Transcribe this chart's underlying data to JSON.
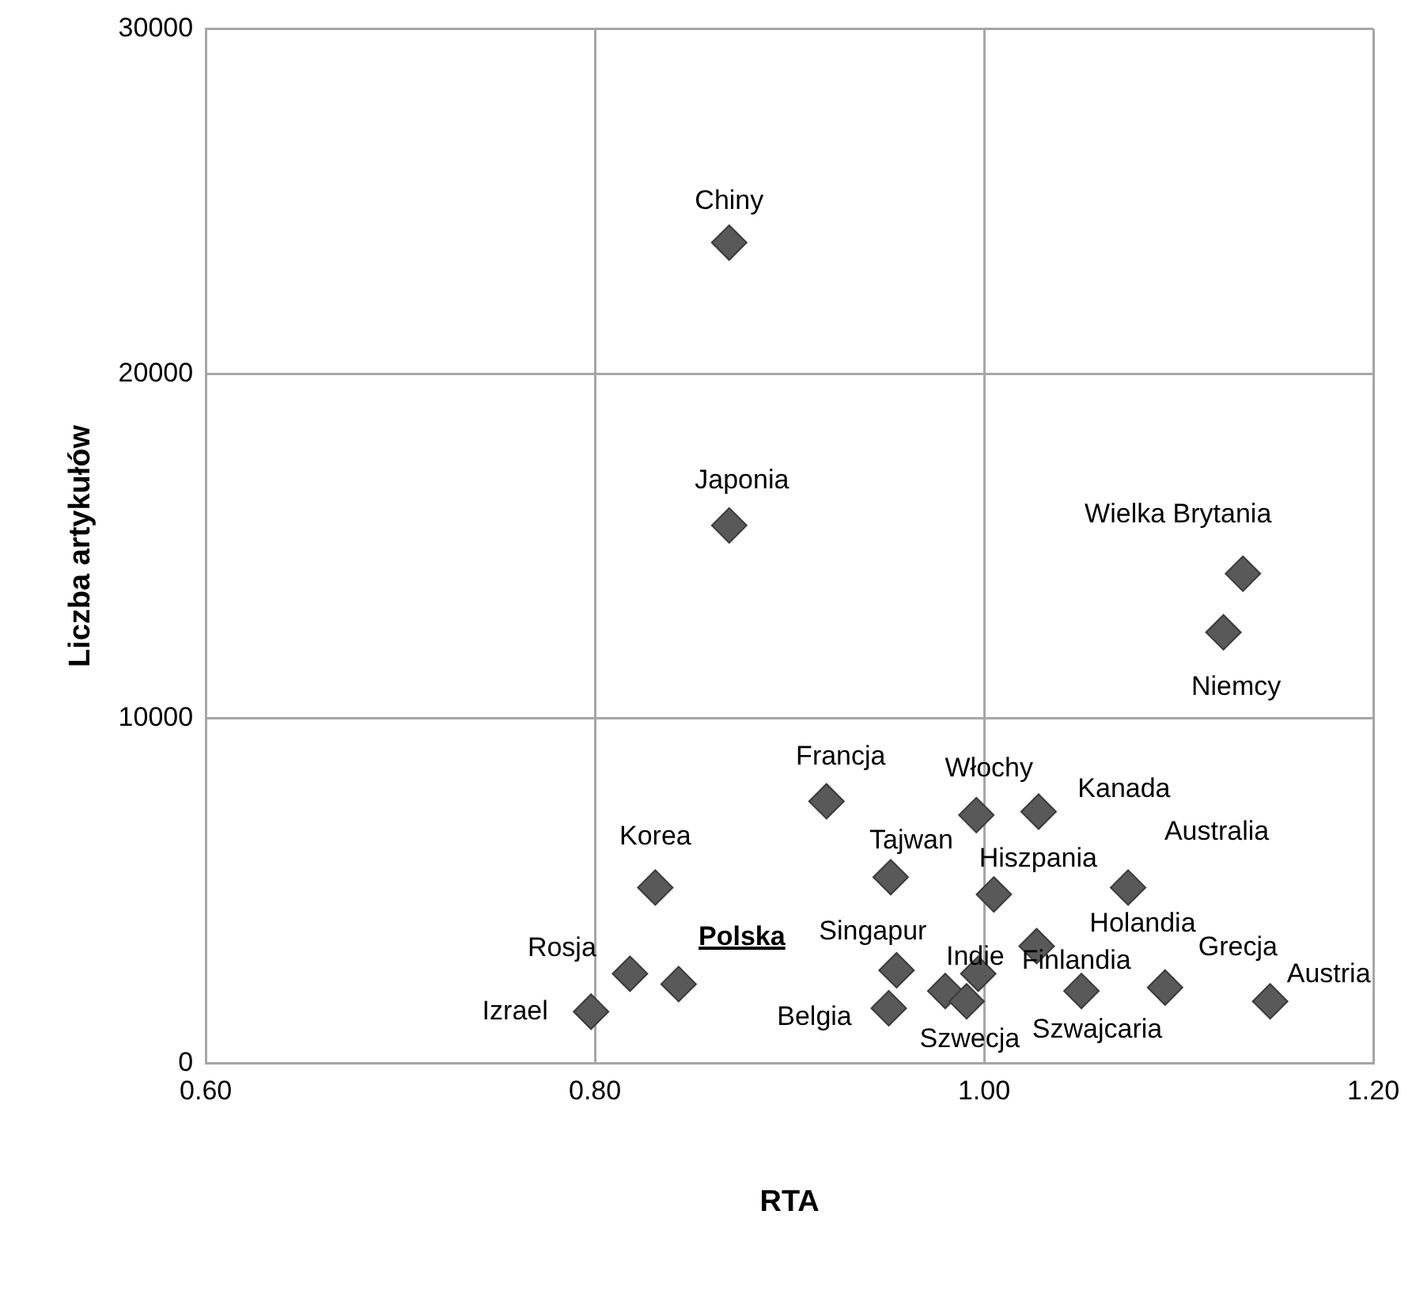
{
  "chart_data": {
    "type": "scatter",
    "xlabel": "RTA",
    "ylabel": "Liczba artykułów",
    "x": [
      0.869,
      0.869,
      1.133,
      1.123,
      0.919,
      0.996,
      1.028,
      0.831,
      0.952,
      1.005,
      1.074,
      1.027,
      0.818,
      0.843,
      0.798,
      0.955,
      0.951,
      0.98,
      0.997,
      0.991,
      1.05,
      1.093,
      1.147
    ],
    "values": [
      23800,
      15600,
      14200,
      12500,
      7600,
      7200,
      7300,
      5100,
      5400,
      4900,
      5100,
      3400,
      2600,
      2300,
      1500,
      2700,
      1600,
      2100,
      2600,
      1800,
      2100,
      2200,
      1800
    ],
    "color": "#595959",
    "marker": "diamond",
    "grid": true,
    "xlim": [
      0.6,
      1.2
    ],
    "xticks": [
      {
        "value": 0.6,
        "label": "0.60"
      },
      {
        "value": 0.8,
        "label": "0.80"
      },
      {
        "value": 1.0,
        "label": "1.00"
      },
      {
        "value": 1.2,
        "label": "1.20"
      }
    ],
    "ylim": [
      0,
      30000
    ],
    "yticks": [
      0,
      10000,
      20000,
      30000
    ],
    "annotations": [
      {
        "text": "Chiny",
        "x": 0.869,
        "y": 23800
      },
      {
        "text": "Japonia",
        "x": 0.869,
        "y": 15600
      },
      {
        "text": "Wielka Brytania",
        "x": 1.133,
        "y": 14200
      },
      {
        "text": "Niemcy",
        "x": 1.123,
        "y": 12500
      },
      {
        "text": "Francja",
        "x": 0.919,
        "y": 7600
      },
      {
        "text": "Włochy",
        "x": 0.996,
        "y": 7200
      },
      {
        "text": "Kanada",
        "x": 1.028,
        "y": 7300
      },
      {
        "text": "Korea",
        "x": 0.831,
        "y": 5100
      },
      {
        "text": "Tajwan",
        "x": 0.952,
        "y": 5400
      },
      {
        "text": "Hiszpania",
        "x": 1.005,
        "y": 4900
      },
      {
        "text": "Australia",
        "x": 1.074,
        "y": 5100
      },
      {
        "text": "Holandia",
        "x": 1.027,
        "y": 3400
      },
      {
        "text": "Rosja",
        "x": 0.818,
        "y": 2600
      },
      {
        "text": "Polska",
        "x": 0.843,
        "y": 2300
      },
      {
        "text": "Izrael",
        "x": 0.798,
        "y": 1500
      },
      {
        "text": "Singapur",
        "x": 0.955,
        "y": 2700
      },
      {
        "text": "Belgia",
        "x": 0.951,
        "y": 1600
      },
      {
        "text": "Indie",
        "x": 0.98,
        "y": 2100
      },
      {
        "text": "Finlandia",
        "x": 0.997,
        "y": 2600
      },
      {
        "text": "Szwecja",
        "x": 0.991,
        "y": 1800
      },
      {
        "text": "Szwajcaria",
        "x": 1.05,
        "y": 2100
      },
      {
        "text": "Grecja",
        "x": 1.093,
        "y": 2200
      },
      {
        "text": "Austria",
        "x": 1.147,
        "y": 1800
      }
    ]
  }
}
